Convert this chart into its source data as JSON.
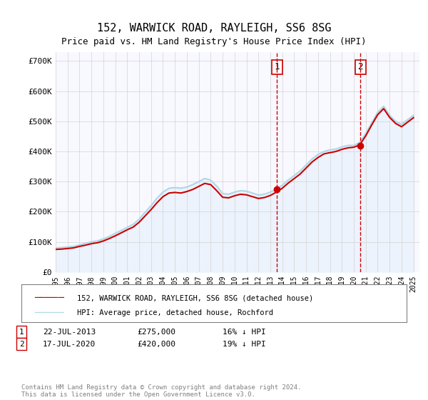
{
  "title": "152, WARWICK ROAD, RAYLEIGH, SS6 8SG",
  "subtitle": "Price paid vs. HM Land Registry's House Price Index (HPI)",
  "legend_line1": "152, WARWICK ROAD, RAYLEIGH, SS6 8SG (detached house)",
  "legend_line2": "HPI: Average price, detached house, Rochford",
  "annotation1_label": "1",
  "annotation1_date": "22-JUL-2013",
  "annotation1_price": "£275,000",
  "annotation1_hpi": "16% ↓ HPI",
  "annotation1_year": 2013.55,
  "annotation1_value": 275000,
  "annotation2_label": "2",
  "annotation2_date": "17-JUL-2020",
  "annotation2_price": "£420,000",
  "annotation2_hpi": "19% ↓ HPI",
  "annotation2_year": 2020.55,
  "annotation2_value": 420000,
  "footer": "Contains HM Land Registry data © Crown copyright and database right 2024.\nThis data is licensed under the Open Government Licence v3.0.",
  "hpi_color": "#add8e6",
  "price_color": "#cc0000",
  "vline_color": "#cc0000",
  "fill_color": "#d6eaf8",
  "background_color": "#f8f8ff",
  "ylim": [
    0,
    730000
  ],
  "xlim_start": 1995,
  "xlim_end": 2025.5
}
